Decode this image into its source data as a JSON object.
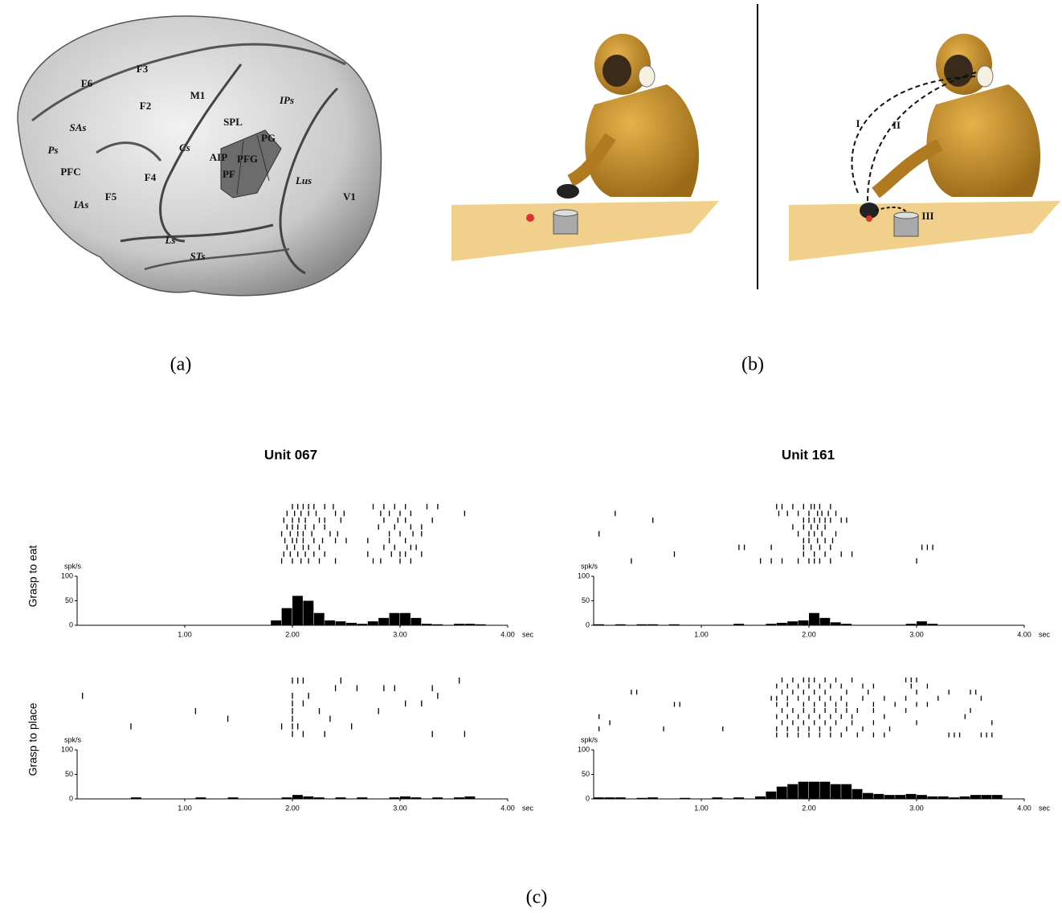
{
  "panel_a": {
    "label": "(a)",
    "labels": [
      "F3",
      "F6",
      "F2",
      "M1",
      "IPs",
      "SPL",
      "PG",
      "SAs",
      "Ps",
      "PFC",
      "Cs",
      "AIP",
      "PFG",
      "PF",
      "F4",
      "F5",
      "IAs",
      "Lus",
      "V1",
      "Ls",
      "STs"
    ]
  },
  "panel_b": {
    "label": "(b)",
    "labels": [
      "I",
      "II",
      "III"
    ]
  },
  "panel_c": {
    "label": "(c)",
    "columns": [
      "Unit  067",
      "Unit  161"
    ],
    "rows": [
      "Grasp to eat",
      "Grasp to place"
    ]
  },
  "chart_data": [
    {
      "type": "histogram",
      "y_unit": "spk/s",
      "x_unit": "sec",
      "bins": [
        0,
        0.1,
        0.2,
        0.3,
        0.4,
        0.5,
        0.6,
        0.7,
        0.8,
        0.9,
        1,
        1.1,
        1.2,
        1.3,
        1.4,
        1.5,
        1.6,
        1.7,
        1.8,
        1.9,
        2,
        2.1,
        2.2,
        2.3,
        2.4,
        2.5,
        2.6,
        2.7,
        2.8,
        2.9,
        3,
        3.1,
        3.2,
        3.3,
        3.4,
        3.5,
        3.6,
        3.7,
        3.8,
        3.9,
        4
      ],
      "values": [
        0,
        0,
        0,
        0,
        0,
        0,
        0,
        0,
        0,
        0,
        0,
        0,
        0,
        0,
        0,
        0,
        0,
        0,
        10,
        35,
        60,
        50,
        25,
        10,
        8,
        5,
        3,
        8,
        15,
        25,
        25,
        15,
        3,
        2,
        0,
        3,
        3,
        2,
        0,
        0
      ],
      "raster": [
        [
          2.0,
          2.05,
          2.1,
          2.15,
          2.2,
          2.3,
          2.38,
          2.75,
          2.85,
          2.95,
          3.05,
          3.25,
          3.35
        ],
        [
          1.95,
          2.02,
          2.08,
          2.15,
          2.22,
          2.4,
          2.48,
          2.82,
          2.9,
          3.0,
          3.1,
          3.6
        ],
        [
          1.92,
          2.0,
          2.06,
          2.12,
          2.25,
          2.3,
          2.45,
          2.85,
          2.98,
          3.05,
          3.3
        ],
        [
          1.95,
          2.0,
          2.05,
          2.12,
          2.2,
          2.3,
          2.8,
          2.95,
          3.1,
          3.2
        ],
        [
          1.9,
          1.98,
          2.05,
          2.1,
          2.18,
          2.35,
          2.42,
          2.9,
          3.0,
          3.12,
          3.2
        ],
        [
          1.93,
          2.0,
          2.04,
          2.1,
          2.2,
          2.28,
          2.4,
          2.5,
          2.7,
          2.9,
          3.05
        ],
        [
          1.95,
          2.02,
          2.1,
          2.15,
          2.25,
          2.85,
          2.95,
          3.1,
          3.15
        ],
        [
          1.92,
          1.98,
          2.05,
          2.12,
          2.2,
          2.3,
          2.7,
          2.92,
          3.0,
          3.05,
          3.2
        ],
        [
          1.9,
          2.0,
          2.08,
          2.15,
          2.25,
          2.4,
          2.75,
          2.82,
          3.0,
          3.1
        ]
      ],
      "xlim": [
        0,
        4
      ],
      "xticks": [
        {
          "value": 1,
          "label": "1.00"
        },
        {
          "value": 2,
          "label": "2.00"
        },
        {
          "value": 3,
          "label": "3.00"
        },
        {
          "value": 4,
          "label": "4.00"
        }
      ],
      "ylim": [
        0,
        100
      ],
      "yticks": [
        0,
        50,
        100
      ],
      "color": "#000000"
    },
    {
      "type": "histogram",
      "y_unit": "spk/s",
      "x_unit": "sec",
      "bins": [
        0,
        0.1,
        0.2,
        0.3,
        0.4,
        0.5,
        0.6,
        0.7,
        0.8,
        0.9,
        1,
        1.1,
        1.2,
        1.3,
        1.4,
        1.5,
        1.6,
        1.7,
        1.8,
        1.9,
        2,
        2.1,
        2.2,
        2.3,
        2.4,
        2.5,
        2.6,
        2.7,
        2.8,
        2.9,
        3,
        3.1,
        3.2,
        3.3,
        3.4,
        3.5,
        3.6,
        3.7,
        3.8,
        3.9,
        4
      ],
      "values": [
        2,
        0,
        2,
        0,
        2,
        2,
        0,
        2,
        0,
        0,
        0,
        0,
        0,
        3,
        0,
        0,
        3,
        5,
        8,
        10,
        25,
        15,
        6,
        3,
        0,
        0,
        0,
        0,
        0,
        3,
        8,
        3,
        0,
        0,
        0,
        0,
        0,
        0,
        0,
        0
      ],
      "raster": [
        [
          1.7,
          1.75,
          1.85,
          1.95,
          2.02,
          2.05,
          2.1,
          2.2
        ],
        [
          0.2,
          1.72,
          1.8,
          1.9,
          2.0,
          2.08,
          2.12,
          2.18,
          2.25
        ],
        [
          0.55,
          1.95,
          2.0,
          2.05,
          2.1,
          2.15,
          2.2,
          2.3,
          2.35
        ],
        [
          1.85,
          1.95,
          2.02,
          2.08,
          2.15
        ],
        [
          0.05,
          1.9,
          2.0,
          2.05,
          2.12,
          2.25
        ],
        [
          1.95,
          2.0,
          2.08,
          2.15,
          2.22
        ],
        [
          1.35,
          1.4,
          1.65,
          1.95,
          2.02,
          2.1,
          2.2,
          3.05,
          3.1,
          3.15
        ],
        [
          0.75,
          1.95,
          2.05,
          2.15,
          2.3,
          2.4
        ],
        [
          0.35,
          1.55,
          1.65,
          1.75,
          1.9,
          2.0,
          2.05,
          2.1,
          2.2,
          3.0
        ]
      ],
      "xlim": [
        0,
        4
      ],
      "xticks": [
        {
          "value": 1,
          "label": "1.00"
        },
        {
          "value": 2,
          "label": "2.00"
        },
        {
          "value": 3,
          "label": "3.00"
        },
        {
          "value": 4,
          "label": "4.00"
        }
      ],
      "ylim": [
        0,
        100
      ],
      "yticks": [
        0,
        50,
        100
      ],
      "color": "#000000"
    },
    {
      "type": "histogram",
      "y_unit": "spk/s",
      "x_unit": "sec",
      "bins": [
        0,
        0.1,
        0.2,
        0.3,
        0.4,
        0.5,
        0.6,
        0.7,
        0.8,
        0.9,
        1,
        1.1,
        1.2,
        1.3,
        1.4,
        1.5,
        1.6,
        1.7,
        1.8,
        1.9,
        2,
        2.1,
        2.2,
        2.3,
        2.4,
        2.5,
        2.6,
        2.7,
        2.8,
        2.9,
        3,
        3.1,
        3.2,
        3.3,
        3.4,
        3.5,
        3.6,
        3.7,
        3.8,
        3.9,
        4
      ],
      "values": [
        0,
        0,
        0,
        0,
        0,
        3,
        0,
        0,
        0,
        0,
        0,
        3,
        0,
        0,
        3,
        0,
        0,
        0,
        0,
        3,
        8,
        5,
        3,
        0,
        3,
        0,
        3,
        0,
        0,
        3,
        5,
        3,
        0,
        3,
        0,
        3,
        5,
        0,
        0,
        0
      ],
      "raster": [
        [
          2.0,
          2.05,
          2.1,
          2.45,
          3.55
        ],
        [
          2.4,
          2.6,
          2.85,
          2.95,
          3.3
        ],
        [
          0.05,
          2.0,
          2.15,
          3.35
        ],
        [
          2.0,
          2.1,
          3.05,
          3.2
        ],
        [
          1.1,
          2.0,
          2.25,
          2.8
        ],
        [
          1.4,
          2.0,
          2.35
        ],
        [
          0.5,
          1.9,
          2.0,
          2.05,
          2.55
        ],
        [
          2.0,
          2.1,
          2.3,
          3.3,
          3.6
        ]
      ],
      "xlim": [
        0,
        4
      ],
      "xticks": [
        {
          "value": 1,
          "label": "1.00"
        },
        {
          "value": 2,
          "label": "2.00"
        },
        {
          "value": 3,
          "label": "3.00"
        },
        {
          "value": 4,
          "label": "4.00"
        }
      ],
      "ylim": [
        0,
        100
      ],
      "yticks": [
        0,
        50,
        100
      ],
      "color": "#000000"
    },
    {
      "type": "histogram",
      "y_unit": "spk/s",
      "x_unit": "sec",
      "bins": [
        0,
        0.1,
        0.2,
        0.3,
        0.4,
        0.5,
        0.6,
        0.7,
        0.8,
        0.9,
        1,
        1.1,
        1.2,
        1.3,
        1.4,
        1.5,
        1.6,
        1.7,
        1.8,
        1.9,
        2,
        2.1,
        2.2,
        2.3,
        2.4,
        2.5,
        2.6,
        2.7,
        2.8,
        2.9,
        3,
        3.1,
        3.2,
        3.3,
        3.4,
        3.5,
        3.6,
        3.7,
        3.8,
        3.9,
        4
      ],
      "values": [
        3,
        3,
        3,
        0,
        2,
        3,
        0,
        0,
        2,
        0,
        0,
        3,
        0,
        3,
        0,
        5,
        15,
        25,
        30,
        35,
        35,
        35,
        30,
        30,
        20,
        12,
        10,
        8,
        8,
        10,
        8,
        5,
        5,
        3,
        5,
        8,
        8,
        8,
        0,
        0
      ],
      "raster": [
        [
          1.75,
          1.85,
          1.95,
          2.0,
          2.05,
          2.15,
          2.25,
          2.4,
          2.9,
          2.95,
          3.0
        ],
        [
          1.7,
          1.8,
          1.9,
          2.0,
          2.1,
          2.2,
          2.3,
          2.5,
          2.6,
          2.95,
          3.1
        ],
        [
          0.35,
          0.4,
          1.75,
          1.85,
          1.95,
          2.05,
          2.15,
          2.35,
          2.55,
          3.0,
          3.3,
          3.5,
          3.55
        ],
        [
          1.65,
          1.7,
          1.8,
          1.9,
          2.0,
          2.1,
          2.2,
          2.3,
          2.5,
          2.7,
          2.9,
          3.2,
          3.6
        ],
        [
          0.75,
          0.8,
          1.7,
          1.8,
          1.95,
          2.05,
          2.15,
          2.25,
          2.35,
          2.6,
          2.8,
          3.0,
          3.1
        ],
        [
          1.75,
          1.85,
          1.95,
          2.05,
          2.15,
          2.25,
          2.35,
          2.45,
          2.6,
          2.9,
          3.5
        ],
        [
          0.05,
          1.7,
          1.8,
          1.9,
          2.0,
          2.1,
          2.2,
          2.3,
          2.4,
          2.7,
          3.45
        ],
        [
          0.15,
          1.75,
          1.85,
          1.95,
          2.05,
          2.15,
          2.25,
          2.4,
          2.6,
          3.0,
          3.7
        ],
        [
          0.05,
          0.65,
          1.2,
          1.7,
          1.8,
          1.9,
          2.0,
          2.1,
          2.2,
          2.35,
          2.5,
          2.75
        ],
        [
          1.7,
          1.8,
          1.9,
          2.0,
          2.1,
          2.2,
          2.3,
          2.45,
          2.6,
          2.7,
          3.3,
          3.35,
          3.4,
          3.6,
          3.65,
          3.7
        ]
      ],
      "xlim": [
        0,
        4
      ],
      "xticks": [
        {
          "value": 1,
          "label": "1.00"
        },
        {
          "value": 2,
          "label": "2.00"
        },
        {
          "value": 3,
          "label": "3.00"
        },
        {
          "value": 4,
          "label": "4.00"
        }
      ],
      "ylim": [
        0,
        100
      ],
      "yticks": [
        0,
        50,
        100
      ],
      "color": "#000000"
    }
  ]
}
